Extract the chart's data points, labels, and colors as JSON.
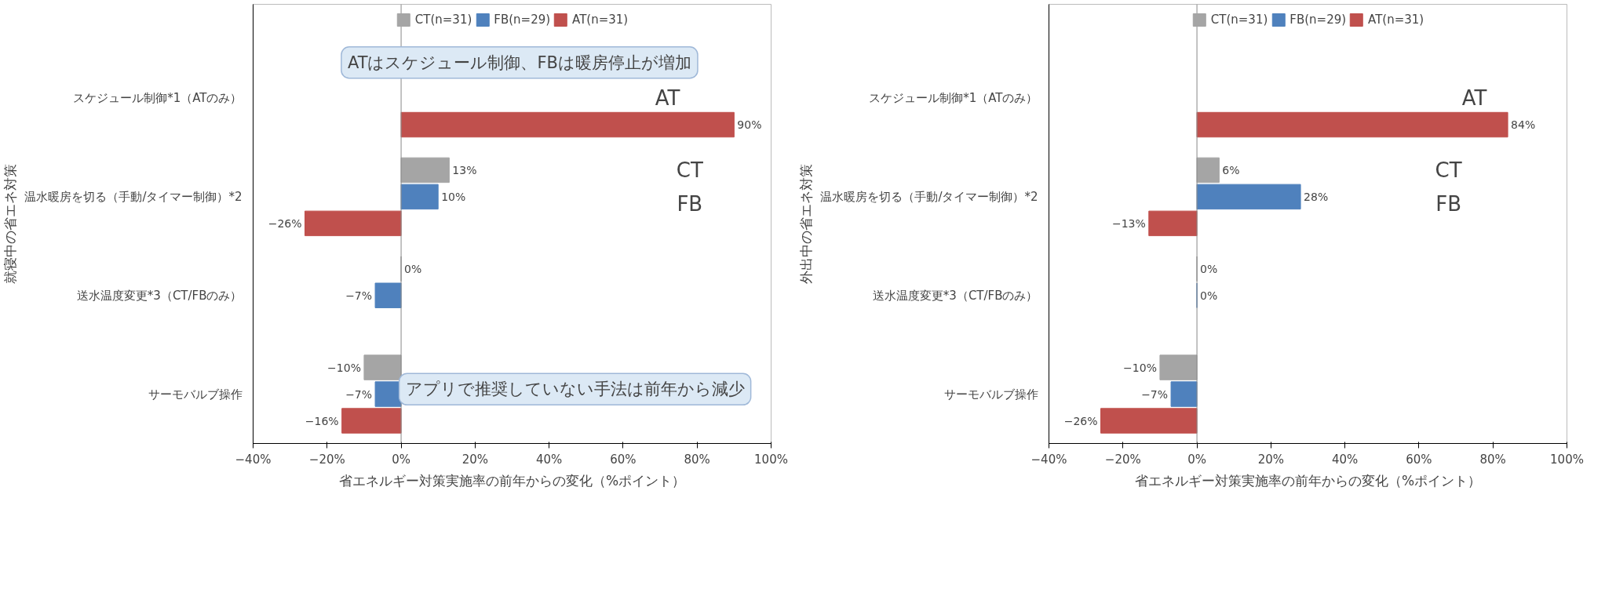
{
  "chart_data": [
    {
      "type": "bar",
      "orientation": "horizontal",
      "xlabel": "省エネルギー対策実施率の前年からの変化（%ポイント）",
      "ylabel": "就寝中の省エネ対策",
      "categories": [
        "スケジュール制御*1（ATのみ）",
        "温水暖房を切る（手動/タイマー制御）*2",
        "送水温度変更*3（CT/FBのみ）",
        "サーモバルブ操作"
      ],
      "series": [
        {
          "name": "CT(n=31)",
          "color": "#a5a5a5",
          "values": [
            null,
            13,
            0,
            -10
          ],
          "value_labels": [
            null,
            "13%",
            "0%",
            "−10%"
          ]
        },
        {
          "name": "FB(n=29)",
          "color": "#4f81bd",
          "values": [
            null,
            10,
            -7,
            -7
          ],
          "value_labels": [
            null,
            "10%",
            "−7%",
            "−7%"
          ]
        },
        {
          "name": "AT(n=31)",
          "color": "#c0504d",
          "values": [
            90,
            -26,
            null,
            -16
          ],
          "value_labels": [
            "90%",
            "−26%",
            null,
            "−16%"
          ]
        }
      ],
      "xlim": [
        -40,
        100
      ],
      "xticks": [
        {
          "value": -40,
          "label": "−40%"
        },
        {
          "value": -20,
          "label": "−20%"
        },
        {
          "value": 0,
          "label": "0%"
        },
        {
          "value": 20,
          "label": "20%"
        },
        {
          "value": 40,
          "label": "40%"
        },
        {
          "value": 60,
          "label": "60%"
        },
        {
          "value": 80,
          "label": "80%"
        },
        {
          "value": 100,
          "label": "100%"
        }
      ],
      "ref_lines": [
        {
          "axis": "x",
          "value": 0
        }
      ],
      "grid": false,
      "legend": "top",
      "annotations": [
        "ATはスケジュール制御、FBは暖房停止が増加",
        "アプリで推奨していない手法は前年から減少",
        "AT",
        "CT",
        "FB"
      ]
    },
    {
      "type": "bar",
      "orientation": "horizontal",
      "xlabel": "省エネルギー対策実施率の前年からの変化（%ポイント）",
      "ylabel": "外出中の省エネ対策",
      "categories": [
        "スケジュール制御*1（ATのみ）",
        "温水暖房を切る（手動/タイマー制御）*2",
        "送水温度変更*3（CT/FBのみ）",
        "サーモバルブ操作"
      ],
      "series": [
        {
          "name": "CT(n=31)",
          "color": "#a5a5a5",
          "values": [
            null,
            6,
            0,
            -10
          ],
          "value_labels": [
            null,
            "6%",
            "0%",
            "−10%"
          ]
        },
        {
          "name": "FB(n=29)",
          "color": "#4f81bd",
          "values": [
            null,
            28,
            0,
            -7
          ],
          "value_labels": [
            null,
            "28%",
            "0%",
            "−7%"
          ]
        },
        {
          "name": "AT(n=31)",
          "color": "#c0504d",
          "values": [
            84,
            -13,
            null,
            -26
          ],
          "value_labels": [
            "84%",
            "−13%",
            null,
            "−26%"
          ]
        }
      ],
      "xlim": [
        -40,
        100
      ],
      "xticks": [
        {
          "value": -40,
          "label": "−40%"
        },
        {
          "value": -20,
          "label": "−20%"
        },
        {
          "value": 0,
          "label": "0%"
        },
        {
          "value": 20,
          "label": "20%"
        },
        {
          "value": 40,
          "label": "40%"
        },
        {
          "value": 60,
          "label": "60%"
        },
        {
          "value": 80,
          "label": "80%"
        },
        {
          "value": 100,
          "label": "100%"
        }
      ],
      "ref_lines": [
        {
          "axis": "x",
          "value": 0
        }
      ],
      "grid": false,
      "legend": "top",
      "annotations": [
        "AT",
        "CT",
        "FB"
      ]
    }
  ]
}
